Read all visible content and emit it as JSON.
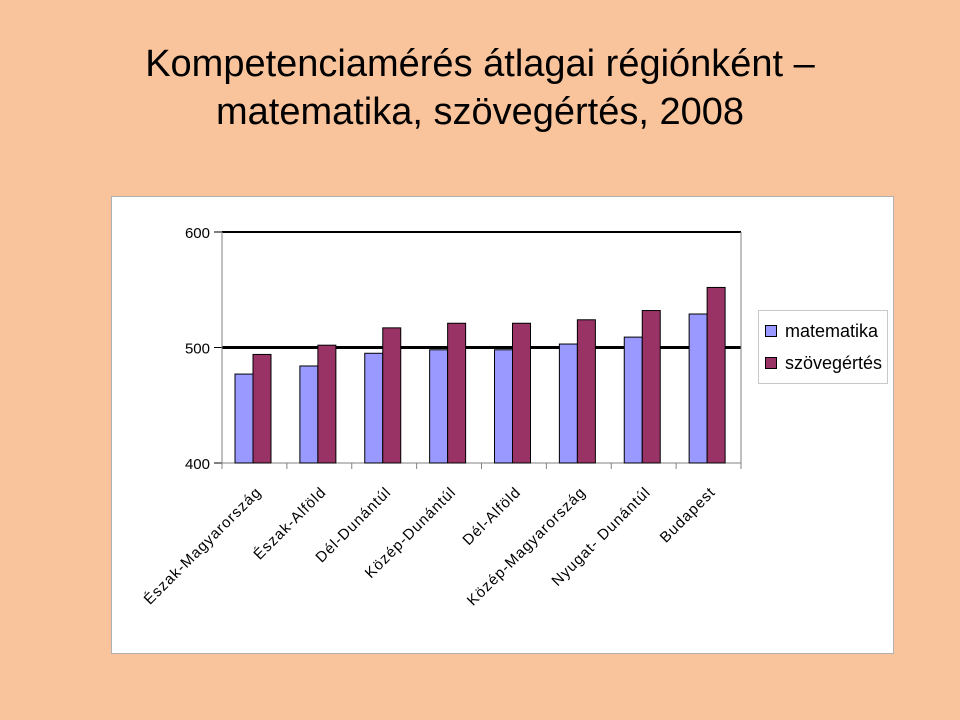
{
  "title": {
    "line1": "Kompetenciamérés átlagai régiónként –",
    "line2": "matematika, szövegértés, 2008"
  },
  "chart_data": {
    "type": "bar",
    "categories": [
      "Észak-Magyarország",
      "Észak-Alföld",
      "Dél-Dunántúl",
      "Közép-Dunántúl",
      "Dél-Alföld",
      "Közép-Magyarország",
      "Nyugat- Dunántúl",
      "Budapest"
    ],
    "series": [
      {
        "name": "matematika",
        "values": [
          477,
          484,
          495,
          498,
          498,
          503,
          509,
          529
        ],
        "color": "#9999ff"
      },
      {
        "name": "szövegértés",
        "values": [
          494,
          502,
          517,
          521,
          521,
          524,
          532,
          552
        ],
        "color": "#993366"
      }
    ],
    "ylim": [
      400,
      600
    ],
    "yticks": [
      400,
      500,
      600
    ],
    "ytick_labels": [
      "400",
      "500",
      "600"
    ],
    "grid": true,
    "legend_position": "right"
  }
}
